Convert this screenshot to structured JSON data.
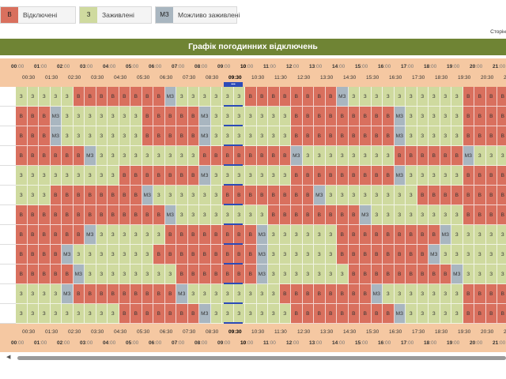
{
  "legend": {
    "items": [
      {
        "code": "В",
        "label": "Відключені",
        "color": "#d9705e"
      },
      {
        "code": "З",
        "label": "Заживлені",
        "color": "#cfda9f"
      },
      {
        "code": "МЗ",
        "label": "Можливо заживлені",
        "color": "#a9b6c0"
      }
    ]
  },
  "side_label": "Сторін",
  "grid_title": "Графік погодинних відключень",
  "hours": [
    "00",
    "01",
    "02",
    "03",
    "04",
    "05",
    "06",
    "07",
    "08",
    "09",
    "10",
    "11",
    "12",
    "13",
    "14",
    "15",
    "16",
    "17",
    "18",
    "19",
    "20",
    "21"
  ],
  "minute_suffix": ":00",
  "half_hours": [
    "00:30",
    "01:30",
    "02:30",
    "03:30",
    "04:30",
    "05:30",
    "06:30",
    "07:30",
    "08:30",
    "09:30",
    "10:30",
    "11:30",
    "12:30",
    "13:30",
    "14:30",
    "15:30",
    "16:30",
    "17:30",
    "18:30",
    "19:30",
    "20:30",
    "21:30"
  ],
  "current_hour": "10",
  "current_half_hour": "09:30",
  "now_marker_text": "▪▪▪",
  "state_labels": {
    "В": "В",
    "З": "З",
    "МЗ": "МЗ"
  },
  "state_colors": {
    "В": "#d9705e",
    "З": "#cfda9f",
    "МЗ": "#a9b6c0"
  },
  "rows": [
    [
      "З",
      "З",
      "З",
      "З",
      "З",
      "В",
      "В",
      "В",
      "В",
      "В",
      "В",
      "В",
      "В",
      "МЗ",
      "З",
      "З",
      "З",
      "З",
      "З",
      "З",
      "В",
      "В",
      "В",
      "В",
      "В",
      "В",
      "В",
      "В",
      "МЗ",
      "З",
      "З",
      "З",
      "З",
      "З",
      "З",
      "З",
      "З",
      "З",
      "З",
      "В",
      "В",
      "В",
      "В",
      "В"
    ],
    [
      "В",
      "В",
      "В",
      "МЗ",
      "З",
      "З",
      "З",
      "З",
      "З",
      "З",
      "З",
      "В",
      "В",
      "В",
      "В",
      "В",
      "МЗ",
      "З",
      "З",
      "З",
      "З",
      "З",
      "З",
      "З",
      "В",
      "В",
      "В",
      "В",
      "В",
      "В",
      "В",
      "В",
      "В",
      "МЗ",
      "З",
      "З",
      "З",
      "З",
      "З",
      "В",
      "В",
      "В",
      "В",
      "В"
    ],
    [
      "В",
      "В",
      "В",
      "МЗ",
      "З",
      "З",
      "З",
      "З",
      "З",
      "З",
      "З",
      "В",
      "В",
      "В",
      "В",
      "В",
      "МЗ",
      "З",
      "З",
      "З",
      "З",
      "З",
      "З",
      "З",
      "В",
      "В",
      "В",
      "В",
      "В",
      "В",
      "В",
      "В",
      "В",
      "МЗ",
      "З",
      "З",
      "З",
      "З",
      "З",
      "В",
      "В",
      "В",
      "В",
      "В"
    ],
    [
      "В",
      "В",
      "В",
      "В",
      "В",
      "В",
      "МЗ",
      "З",
      "З",
      "З",
      "З",
      "З",
      "З",
      "З",
      "З",
      "З",
      "В",
      "В",
      "В",
      "В",
      "В",
      "В",
      "В",
      "В",
      "МЗ",
      "З",
      "З",
      "З",
      "З",
      "З",
      "З",
      "З",
      "З",
      "В",
      "В",
      "В",
      "В",
      "В",
      "В",
      "МЗ",
      "З",
      "З",
      "З",
      "З"
    ],
    [
      "З",
      "З",
      "З",
      "З",
      "З",
      "З",
      "З",
      "З",
      "З",
      "В",
      "В",
      "В",
      "В",
      "В",
      "В",
      "В",
      "МЗ",
      "З",
      "З",
      "З",
      "З",
      "З",
      "З",
      "З",
      "В",
      "В",
      "В",
      "В",
      "В",
      "В",
      "В",
      "В",
      "В",
      "МЗ",
      "З",
      "З",
      "З",
      "З",
      "З",
      "В",
      "В",
      "В",
      "В",
      "В"
    ],
    [
      "З",
      "З",
      "З",
      "В",
      "В",
      "В",
      "В",
      "В",
      "В",
      "В",
      "В",
      "МЗ",
      "З",
      "З",
      "З",
      "З",
      "З",
      "З",
      "В",
      "В",
      "В",
      "В",
      "В",
      "В",
      "В",
      "В",
      "МЗ",
      "З",
      "З",
      "З",
      "З",
      "З",
      "З",
      "З",
      "З",
      "В",
      "В",
      "В",
      "В",
      "В",
      "В",
      "В",
      "В",
      "В"
    ],
    [
      "В",
      "В",
      "В",
      "В",
      "В",
      "В",
      "В",
      "В",
      "В",
      "В",
      "В",
      "В",
      "В",
      "МЗ",
      "З",
      "З",
      "З",
      "З",
      "З",
      "З",
      "З",
      "З",
      "В",
      "В",
      "В",
      "В",
      "В",
      "В",
      "В",
      "В",
      "МЗ",
      "З",
      "З",
      "З",
      "З",
      "З",
      "З",
      "З",
      "З",
      "В",
      "В",
      "В",
      "В",
      "В"
    ],
    [
      "В",
      "В",
      "В",
      "В",
      "В",
      "В",
      "МЗ",
      "З",
      "З",
      "З",
      "З",
      "З",
      "З",
      "В",
      "В",
      "В",
      "В",
      "В",
      "В",
      "В",
      "В",
      "МЗ",
      "З",
      "З",
      "З",
      "З",
      "З",
      "З",
      "В",
      "В",
      "В",
      "В",
      "В",
      "В",
      "В",
      "В",
      "В",
      "МЗ",
      "З",
      "З",
      "З",
      "З",
      "З",
      "З"
    ],
    [
      "В",
      "В",
      "В",
      "В",
      "МЗ",
      "З",
      "З",
      "З",
      "З",
      "З",
      "З",
      "З",
      "В",
      "В",
      "В",
      "В",
      "В",
      "В",
      "В",
      "В",
      "В",
      "МЗ",
      "З",
      "З",
      "З",
      "З",
      "З",
      "З",
      "В",
      "В",
      "В",
      "В",
      "В",
      "В",
      "В",
      "В",
      "МЗ",
      "З",
      "З",
      "З",
      "З",
      "З",
      "З",
      "З"
    ],
    [
      "В",
      "В",
      "В",
      "В",
      "В",
      "МЗ",
      "З",
      "З",
      "З",
      "З",
      "З",
      "З",
      "З",
      "З",
      "В",
      "В",
      "В",
      "В",
      "В",
      "В",
      "В",
      "МЗ",
      "З",
      "З",
      "З",
      "З",
      "З",
      "З",
      "З",
      "В",
      "В",
      "В",
      "В",
      "В",
      "В",
      "В",
      "В",
      "В",
      "МЗ",
      "З",
      "З",
      "З",
      "З",
      "З"
    ],
    [
      "З",
      "З",
      "З",
      "З",
      "МЗ",
      "В",
      "В",
      "В",
      "В",
      "В",
      "В",
      "В",
      "В",
      "В",
      "МЗ",
      "З",
      "З",
      "З",
      "З",
      "З",
      "З",
      "З",
      "З",
      "В",
      "В",
      "В",
      "В",
      "В",
      "В",
      "В",
      "В",
      "МЗ",
      "З",
      "З",
      "З",
      "З",
      "З",
      "З",
      "З",
      "В",
      "В",
      "В",
      "В",
      "В"
    ],
    [
      "З",
      "З",
      "З",
      "З",
      "З",
      "З",
      "З",
      "З",
      "З",
      "В",
      "В",
      "В",
      "В",
      "В",
      "В",
      "В",
      "МЗ",
      "З",
      "З",
      "З",
      "З",
      "З",
      "З",
      "З",
      "В",
      "В",
      "В",
      "В",
      "В",
      "В",
      "В",
      "В",
      "В",
      "МЗ",
      "З",
      "З",
      "З",
      "З",
      "З",
      "В",
      "В",
      "В",
      "В",
      "В"
    ]
  ]
}
